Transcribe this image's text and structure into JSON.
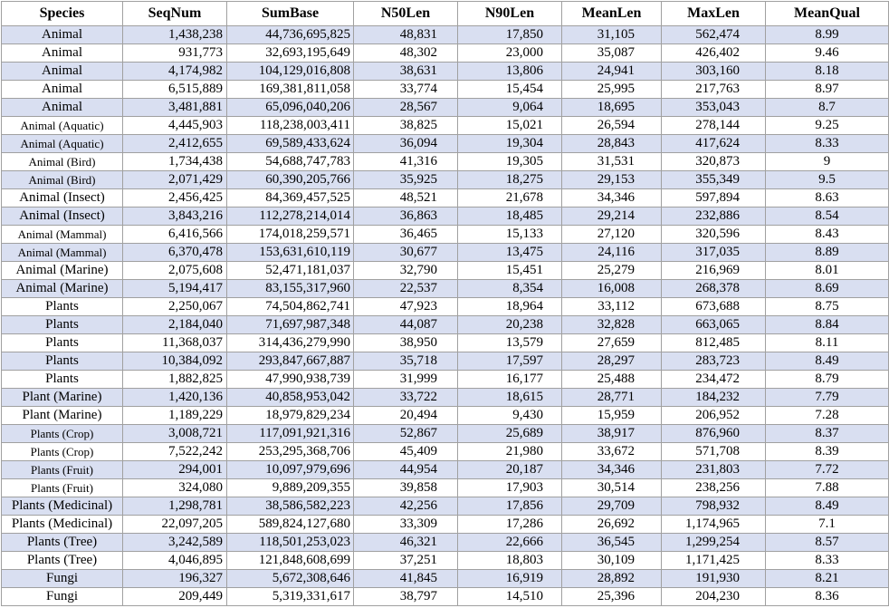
{
  "table": {
    "header": [
      "Species",
      "SeqNum",
      "SumBase",
      "N50Len",
      "N90Len",
      "MeanLen",
      "MaxLen",
      "MeanQual"
    ],
    "rows": [
      [
        "Animal",
        "1,438,238",
        "44,736,695,825",
        "48,831",
        "17,850",
        "31,105",
        "562,474",
        "8.99"
      ],
      [
        "Animal",
        "931,773",
        "32,693,195,649",
        "48,302",
        "23,000",
        "35,087",
        "426,402",
        "9.46"
      ],
      [
        "Animal",
        "4,174,982",
        "104,129,016,808",
        "38,631",
        "13,806",
        "24,941",
        "303,160",
        "8.18"
      ],
      [
        "Animal",
        "6,515,889",
        "169,381,811,058",
        "33,774",
        "15,454",
        "25,995",
        "217,763",
        "8.97"
      ],
      [
        "Animal",
        "3,481,881",
        "65,096,040,206",
        "28,567",
        "9,064",
        "18,695",
        "353,043",
        "8.7"
      ],
      [
        "Animal (Aquatic)",
        "4,445,903",
        "118,238,003,411",
        "38,825",
        "15,021",
        "26,594",
        "278,144",
        "9.25"
      ],
      [
        "Animal (Aquatic)",
        "2,412,655",
        "69,589,433,624",
        "36,094",
        "19,304",
        "28,843",
        "417,624",
        "8.33"
      ],
      [
        "Animal (Bird)",
        "1,734,438",
        "54,688,747,783",
        "41,316",
        "19,305",
        "31,531",
        "320,873",
        "9"
      ],
      [
        "Animal (Bird)",
        "2,071,429",
        "60,390,205,766",
        "35,925",
        "18,275",
        "29,153",
        "355,349",
        "9.5"
      ],
      [
        "Animal (Insect)",
        "2,456,425",
        "84,369,457,525",
        "48,521",
        "21,678",
        "34,346",
        "597,894",
        "8.63"
      ],
      [
        "Animal (Insect)",
        "3,843,216",
        "112,278,214,014",
        "36,863",
        "18,485",
        "29,214",
        "232,886",
        "8.54"
      ],
      [
        "Animal (Mammal)",
        "6,416,566",
        "174,018,259,571",
        "36,465",
        "15,133",
        "27,120",
        "320,596",
        "8.43"
      ],
      [
        "Animal (Mammal)",
        "6,370,478",
        "153,631,610,119",
        "30,677",
        "13,475",
        "24,116",
        "317,035",
        "8.89"
      ],
      [
        "Animal (Marine)",
        "2,075,608",
        "52,471,181,037",
        "32,790",
        "15,451",
        "25,279",
        "216,969",
        "8.01"
      ],
      [
        "Animal (Marine)",
        "5,194,417",
        "83,155,317,960",
        "22,537",
        "8,354",
        "16,008",
        "268,378",
        "8.69"
      ],
      [
        "Plants",
        "2,250,067",
        "74,504,862,741",
        "47,923",
        "18,964",
        "33,112",
        "673,688",
        "8.75"
      ],
      [
        "Plants",
        "2,184,040",
        "71,697,987,348",
        "44,087",
        "20,238",
        "32,828",
        "663,065",
        "8.84"
      ],
      [
        "Plants",
        "11,368,037",
        "314,436,279,990",
        "38,950",
        "13,579",
        "27,659",
        "812,485",
        "8.11"
      ],
      [
        "Plants",
        "10,384,092",
        "293,847,667,887",
        "35,718",
        "17,597",
        "28,297",
        "283,723",
        "8.49"
      ],
      [
        "Plants",
        "1,882,825",
        "47,990,938,739",
        "31,999",
        "16,177",
        "25,488",
        "234,472",
        "8.79"
      ],
      [
        "Plant (Marine)",
        "1,420,136",
        "40,858,953,042",
        "33,722",
        "18,615",
        "28,771",
        "184,232",
        "7.79"
      ],
      [
        "Plant (Marine)",
        "1,189,229",
        "18,979,829,234",
        "20,494",
        "9,430",
        "15,959",
        "206,952",
        "7.28"
      ],
      [
        "Plants (Crop)",
        "3,008,721",
        "117,091,921,316",
        "52,867",
        "25,689",
        "38,917",
        "876,960",
        "8.37"
      ],
      [
        "Plants (Crop)",
        "7,522,242",
        "253,295,368,706",
        "45,409",
        "21,980",
        "33,672",
        "571,708",
        "8.39"
      ],
      [
        "Plants (Fruit)",
        "294,001",
        "10,097,979,696",
        "44,954",
        "20,187",
        "34,346",
        "231,803",
        "7.72"
      ],
      [
        "Plants (Fruit)",
        "324,080",
        "9,889,209,355",
        "39,858",
        "17,903",
        "30,514",
        "238,256",
        "7.88"
      ],
      [
        "Plants (Medicinal)",
        "1,298,781",
        "38,586,582,223",
        "42,256",
        "17,856",
        "29,709",
        "798,932",
        "8.49"
      ],
      [
        "Plants (Medicinal)",
        "22,097,205",
        "589,824,127,680",
        "33,309",
        "17,286",
        "26,692",
        "1,174,965",
        "7.1"
      ],
      [
        "Plants (Tree)",
        "3,242,589",
        "118,501,253,023",
        "46,321",
        "22,666",
        "36,545",
        "1,299,254",
        "8.57"
      ],
      [
        "Plants (Tree)",
        "4,046,895",
        "121,848,608,699",
        "37,251",
        "18,803",
        "30,109",
        "1,171,425",
        "8.33"
      ],
      [
        "Fungi",
        "196,327",
        "5,672,308,646",
        "41,845",
        "16,919",
        "28,892",
        "191,930",
        "8.21"
      ],
      [
        "Fungi",
        "209,449",
        "5,319,331,617",
        "38,797",
        "14,510",
        "25,396",
        "204,230",
        "8.36"
      ]
    ]
  }
}
